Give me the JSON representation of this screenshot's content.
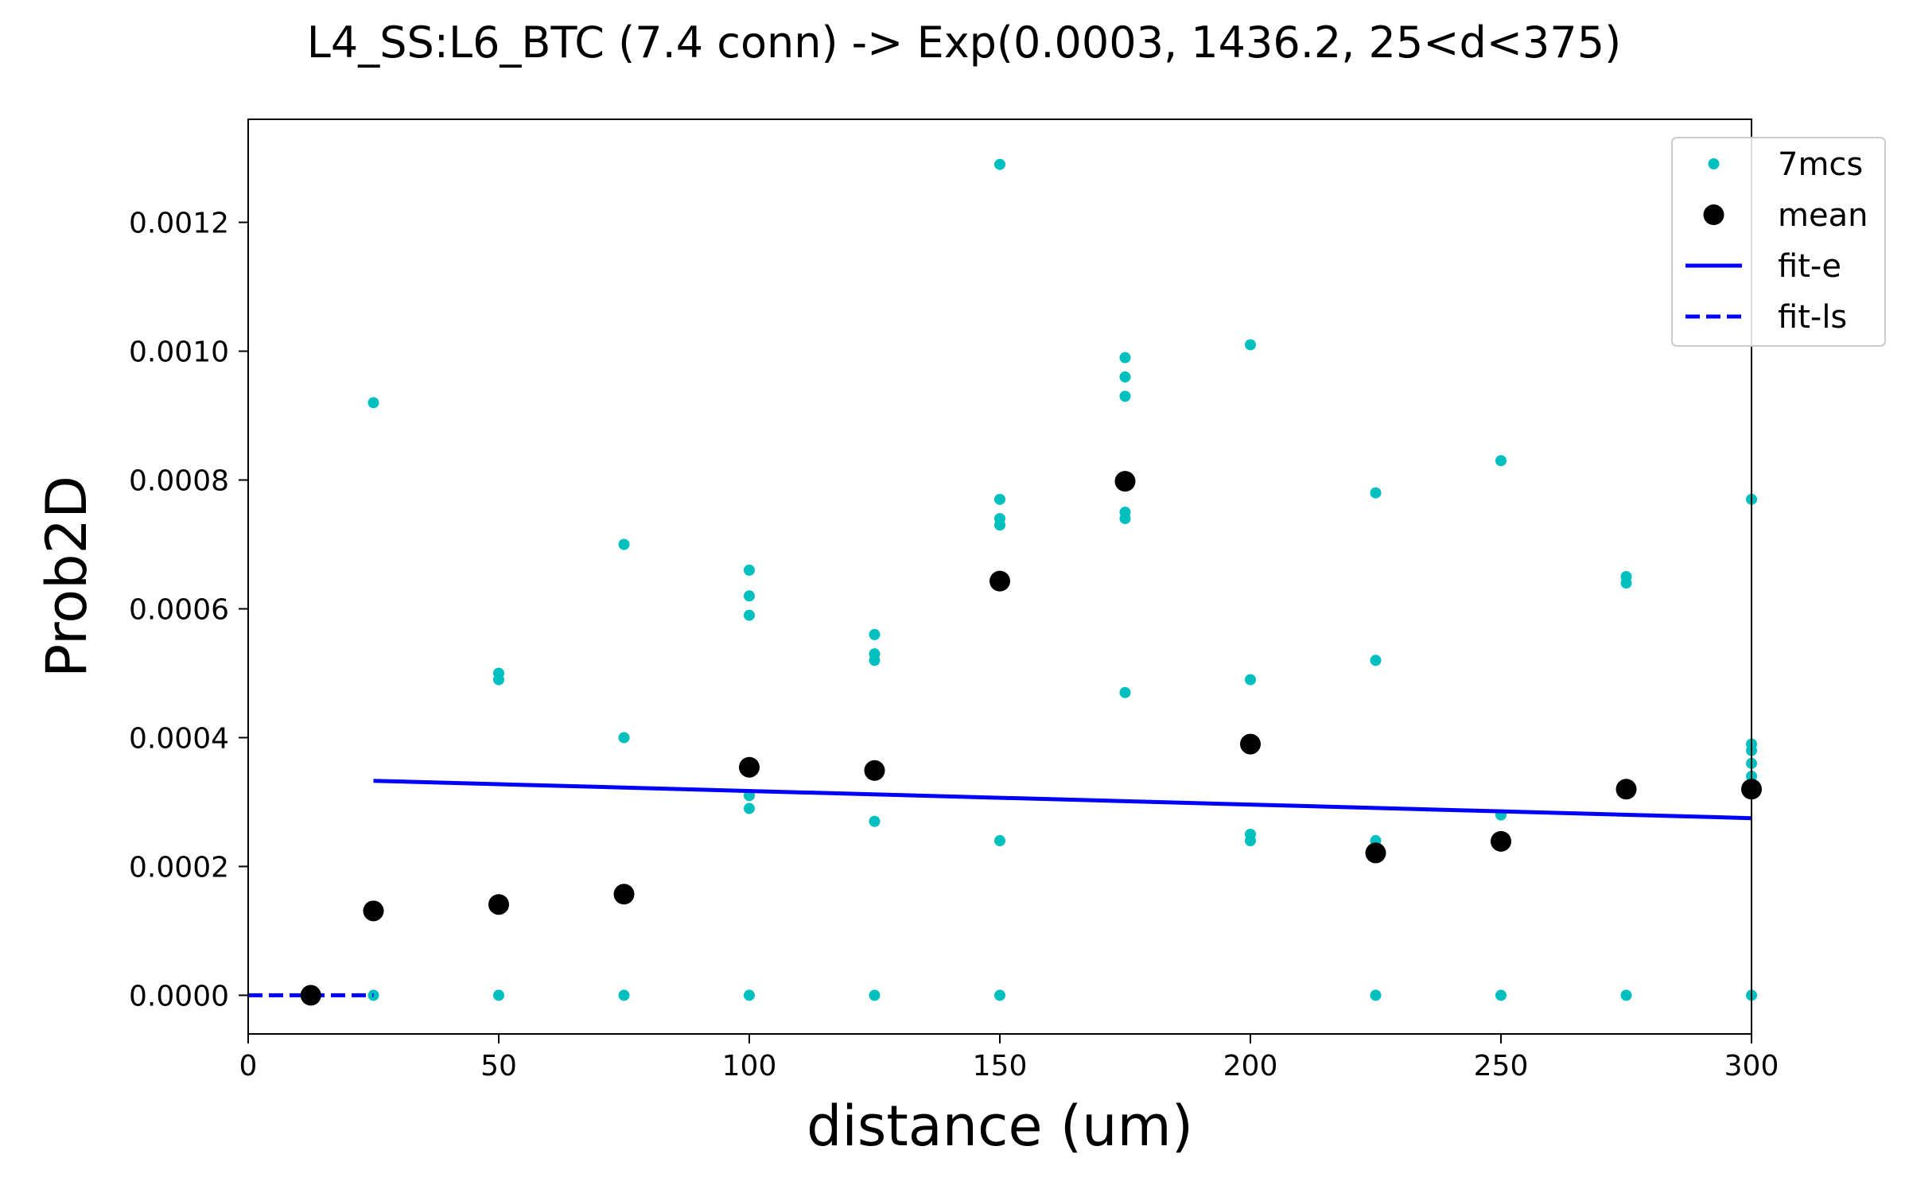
{
  "chart_data": {
    "type": "scatter",
    "title": "L4_SS:L6_BTC (7.4 conn) -> Exp(0.0003, 1436.2, 25<d<375)",
    "xlabel": "distance (um)",
    "ylabel": "Prob2D",
    "xlim": [
      0,
      300
    ],
    "ylim": [
      -6e-05,
      0.00136
    ],
    "xticks": [
      0,
      50,
      100,
      150,
      200,
      250,
      300
    ],
    "xtick_labels": [
      "0",
      "50",
      "100",
      "150",
      "200",
      "250",
      "300"
    ],
    "yticks": [
      0,
      0.0002,
      0.0004,
      0.0006,
      0.0008,
      0.001,
      0.0012
    ],
    "ytick_labels": [
      "0.0000",
      "0.0002",
      "0.0004",
      "0.0006",
      "0.0008",
      "0.0010",
      "0.0012"
    ],
    "grid": false,
    "legend_position": "top-right",
    "series": [
      {
        "name": "7mcs",
        "kind": "scatter-small",
        "color": "#00bfbf",
        "points": [
          [
            25,
            0.00092
          ],
          [
            25,
            0.0
          ],
          [
            50,
            0.0005
          ],
          [
            50,
            0.00049
          ],
          [
            50,
            0.0
          ],
          [
            75,
            0.0007
          ],
          [
            75,
            0.0004
          ],
          [
            75,
            0.0
          ],
          [
            100,
            0.00066
          ],
          [
            100,
            0.00062
          ],
          [
            100,
            0.00059
          ],
          [
            100,
            0.00031
          ],
          [
            100,
            0.00029
          ],
          [
            100,
            0.0
          ],
          [
            125,
            0.00056
          ],
          [
            125,
            0.00053
          ],
          [
            125,
            0.00052
          ],
          [
            125,
            0.00027
          ],
          [
            125,
            0.0
          ],
          [
            150,
            0.00129
          ],
          [
            150,
            0.00077
          ],
          [
            150,
            0.00074
          ],
          [
            150,
            0.00073
          ],
          [
            150,
            0.00024
          ],
          [
            150,
            0.0
          ],
          [
            175,
            0.00099
          ],
          [
            175,
            0.00096
          ],
          [
            175,
            0.00093
          ],
          [
            175,
            0.00075
          ],
          [
            175,
            0.00074
          ],
          [
            175,
            0.00047
          ],
          [
            200,
            0.00101
          ],
          [
            200,
            0.00049
          ],
          [
            200,
            0.00025
          ],
          [
            200,
            0.00024
          ],
          [
            225,
            0.00078
          ],
          [
            225,
            0.00052
          ],
          [
            225,
            0.00024
          ],
          [
            225,
            0.0
          ],
          [
            250,
            0.00083
          ],
          [
            250,
            0.00028
          ],
          [
            250,
            0.0
          ],
          [
            275,
            0.00065
          ],
          [
            275,
            0.00064
          ],
          [
            275,
            0.0
          ],
          [
            300,
            0.00077
          ],
          [
            300,
            0.00039
          ],
          [
            300,
            0.00038
          ],
          [
            300,
            0.00036
          ],
          [
            300,
            0.00034
          ],
          [
            300,
            0.0
          ]
        ]
      },
      {
        "name": "mean",
        "kind": "scatter-large",
        "color": "#000000",
        "points": [
          [
            12.5,
            0.0
          ],
          [
            25,
            0.000131
          ],
          [
            50,
            0.000141
          ],
          [
            75,
            0.000157
          ],
          [
            100,
            0.000354
          ],
          [
            125,
            0.000349
          ],
          [
            150,
            0.000643
          ],
          [
            175,
            0.000798
          ],
          [
            200,
            0.00039
          ],
          [
            225,
            0.000221
          ],
          [
            250,
            0.000239
          ],
          [
            275,
            0.00032
          ],
          [
            300,
            0.00032
          ]
        ]
      },
      {
        "name": "fit-e",
        "kind": "line-solid",
        "color": "#0000ff",
        "points": [
          [
            25,
            0.000333
          ],
          [
            300,
            0.000275
          ]
        ]
      },
      {
        "name": "fit-ls",
        "kind": "line-dashed",
        "color": "#0000ff",
        "points": [
          [
            0,
            0.0
          ],
          [
            25,
            0.0
          ]
        ]
      }
    ]
  }
}
